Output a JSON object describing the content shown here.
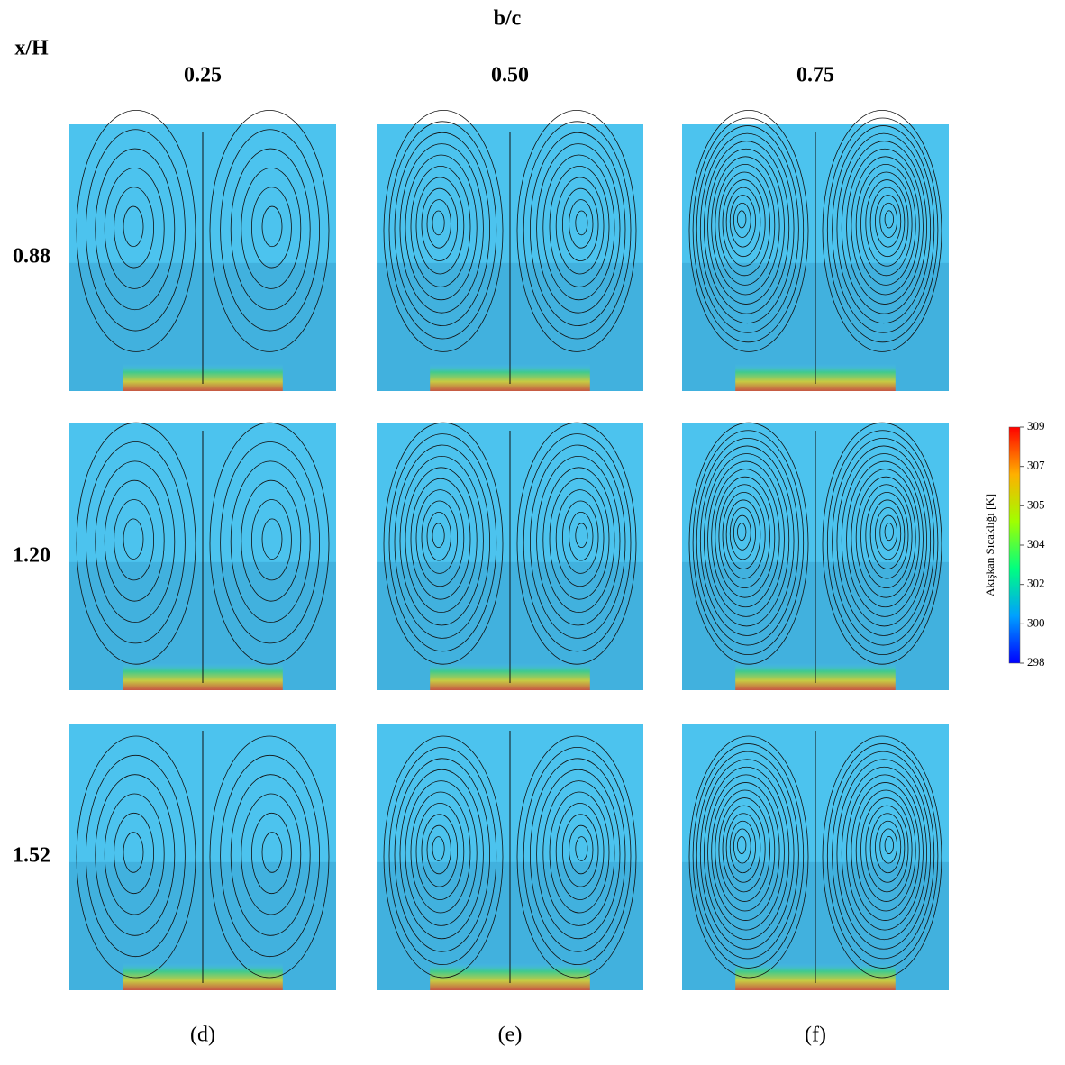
{
  "header": {
    "column_axis": "b/c",
    "row_axis": "x/H"
  },
  "columns": [
    "0.25",
    "0.50",
    "0.75"
  ],
  "rows": [
    "0.88",
    "1.20",
    "1.52"
  ],
  "panel_labels": [
    "(d)",
    "(e)",
    "(f)"
  ],
  "colorbar": {
    "title": "Akışkan Sıcaklığı [K]",
    "ticks": [
      309,
      307,
      305,
      304,
      302,
      300,
      298
    ]
  }
}
